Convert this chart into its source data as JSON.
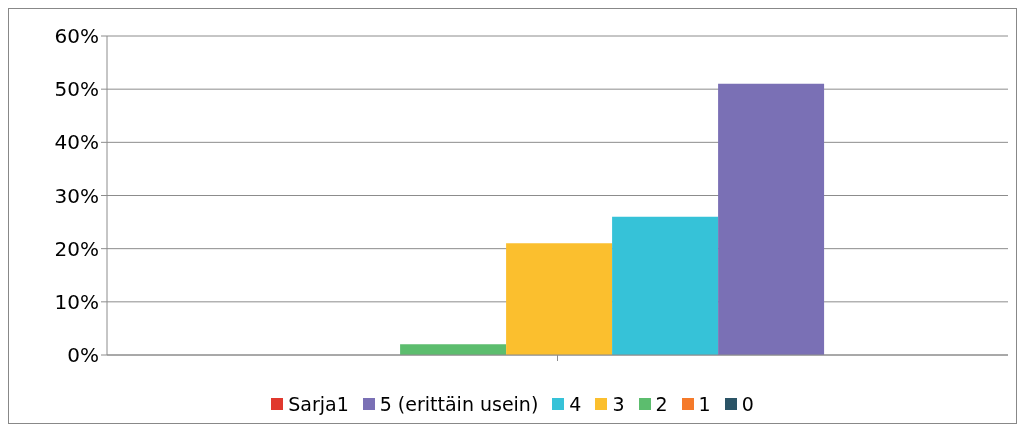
{
  "chart_data": {
    "type": "bar",
    "categories": [
      null
    ],
    "series": [
      {
        "name": "0",
        "color": "#2b5466",
        "values": [
          0
        ]
      },
      {
        "name": "1",
        "color": "#f57a2a",
        "values": [
          0
        ]
      },
      {
        "name": "2",
        "color": "#5cbd6e",
        "values": [
          2
        ]
      },
      {
        "name": "3",
        "color": "#fbbf2e",
        "values": [
          21
        ]
      },
      {
        "name": "4",
        "color": "#36c2d8",
        "values": [
          26
        ]
      },
      {
        "name": "5 (erittäin usein)",
        "color": "#7a70b5",
        "values": [
          51
        ]
      },
      {
        "name": "Sarja1",
        "color": "#e0382e",
        "values": [
          0
        ]
      }
    ],
    "ylim": [
      0,
      60
    ],
    "yticks": [
      {
        "value": 0,
        "label": "0%"
      },
      {
        "value": 10,
        "label": "10%"
      },
      {
        "value": 20,
        "label": "20%"
      },
      {
        "value": 30,
        "label": "30%"
      },
      {
        "value": 40,
        "label": "40%"
      },
      {
        "value": 50,
        "label": "50%"
      },
      {
        "value": 60,
        "label": "60%"
      }
    ],
    "grid": "y",
    "legend": "bottom"
  }
}
